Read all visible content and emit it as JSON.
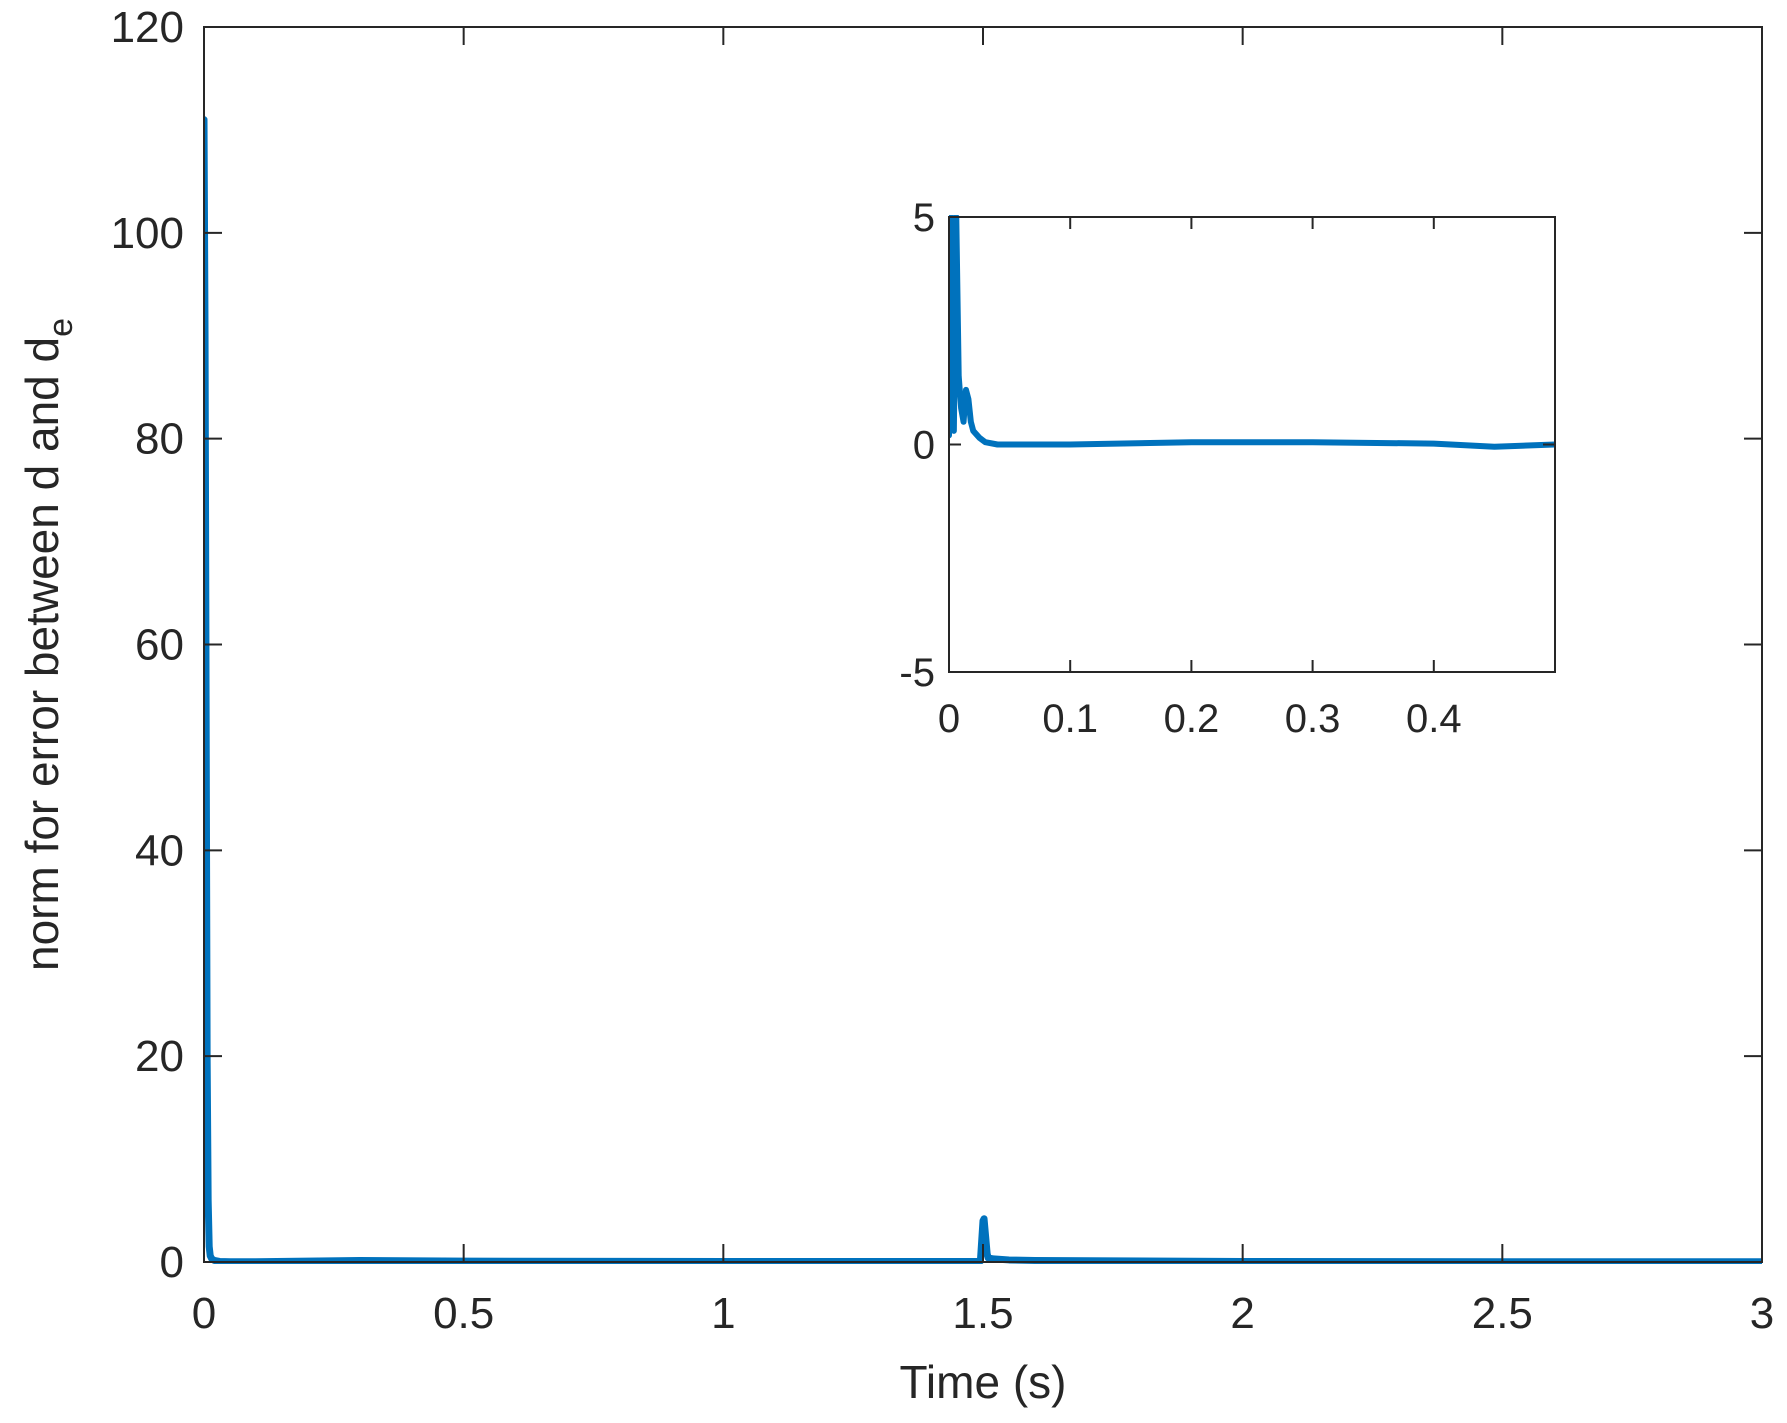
{
  "chart_data": [
    {
      "id": "main",
      "type": "line",
      "xlabel": "Time (s)",
      "ylabel": "norm for error between d and d",
      "ylabel_subscript": "e",
      "xlim": [
        0,
        3
      ],
      "ylim": [
        0,
        120
      ],
      "x_ticks": [
        0,
        0.5,
        1,
        1.5,
        2,
        2.5,
        3
      ],
      "x_tick_labels": [
        "0",
        "0.5",
        "1",
        "1.5",
        "2",
        "2.5",
        "3"
      ],
      "y_ticks": [
        0,
        20,
        40,
        60,
        80,
        100,
        120
      ],
      "y_tick_labels": [
        "0",
        "20",
        "40",
        "60",
        "80",
        "100",
        "120"
      ],
      "grid": false,
      "box": true,
      "series": [
        {
          "color": "#0072BD",
          "x": [
            0,
            0.002,
            0.004,
            0.006,
            0.008,
            0.01,
            0.012,
            0.015,
            0.02,
            0.03,
            0.05,
            0.1,
            0.3,
            0.5,
            1.0,
            1.49,
            1.495,
            1.5,
            1.502,
            1.505,
            1.508,
            1.51,
            1.52,
            1.55,
            1.6,
            2.0,
            2.5,
            3.0
          ],
          "y": [
            111,
            90,
            55,
            20,
            6,
            1.5,
            0.6,
            0.3,
            0.15,
            0.05,
            0.02,
            0.03,
            0.15,
            0.08,
            0.05,
            0.05,
            0.1,
            4,
            4.2,
            2.5,
            0.8,
            0.4,
            0.3,
            0.2,
            0.15,
            0.05,
            0.03,
            0.02
          ]
        }
      ]
    },
    {
      "id": "inset",
      "type": "line",
      "xlim": [
        0,
        0.5
      ],
      "ylim": [
        -5,
        5
      ],
      "x_ticks": [
        0,
        0.1,
        0.2,
        0.3,
        0.4
      ],
      "x_tick_labels": [
        "0",
        "0.1",
        "0.2",
        "0.3",
        "0.4"
      ],
      "y_ticks": [
        -5,
        0,
        5
      ],
      "y_tick_labels": [
        "-5",
        "0",
        "5"
      ],
      "grid": false,
      "box": true,
      "series": [
        {
          "color": "#0072BD",
          "x": [
            0,
            0.002,
            0.004,
            0.006,
            0.008,
            0.01,
            0.012,
            0.014,
            0.016,
            0.018,
            0.02,
            0.025,
            0.03,
            0.04,
            0.06,
            0.1,
            0.2,
            0.3,
            0.4,
            0.45,
            0.5
          ],
          "y": [
            0.2,
            5,
            0.3,
            5,
            1.5,
            0.8,
            0.5,
            1.2,
            1.0,
            0.5,
            0.3,
            0.15,
            0.05,
            0.0,
            0.0,
            0.0,
            0.05,
            0.05,
            0.02,
            -0.05,
            0.0
          ]
        }
      ]
    }
  ]
}
